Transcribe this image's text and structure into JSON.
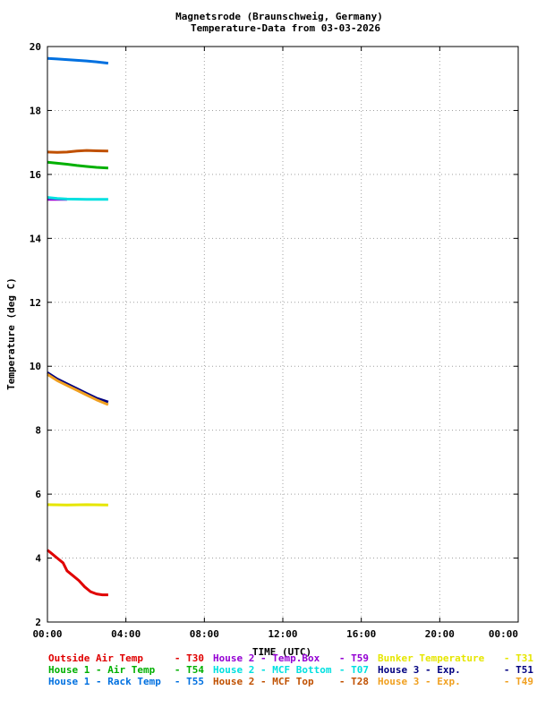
{
  "chart_data": {
    "type": "line",
    "title_line1": "Magnetsrode (Braunschweig, Germany)",
    "title_line2": "Temperature-Data from 03-03-2026",
    "xlabel": "TIME (UTC)",
    "ylabel": "Temperature (deg C)",
    "xlim": [
      0,
      24
    ],
    "ylim": [
      2,
      20
    ],
    "x_ticks": [
      "00:00",
      "04:00",
      "08:00",
      "12:00",
      "16:00",
      "20:00",
      "00:00"
    ],
    "y_ticks": [
      "2",
      "4",
      "6",
      "8",
      "10",
      "12",
      "14",
      "16",
      "18",
      "20"
    ],
    "grid": true,
    "legend_position": "bottom",
    "series": [
      {
        "name": "Outside Air Temp",
        "code": "- T30",
        "color": "#e00000",
        "x": [
          0,
          0.2,
          0.5,
          0.8,
          1.0,
          1.3,
          1.6,
          1.9,
          2.2,
          2.5,
          2.8,
          3.1
        ],
        "y": [
          4.25,
          4.15,
          4.0,
          3.85,
          3.6,
          3.45,
          3.3,
          3.1,
          2.95,
          2.88,
          2.85,
          2.85
        ]
      },
      {
        "name": "House 2 - Temp.Box",
        "code": "- T59",
        "color": "#9400d3",
        "x": [
          0,
          1.0
        ],
        "y": [
          15.22,
          15.22
        ]
      },
      {
        "name": "Bunker Temperature",
        "code": "- T31",
        "color": "#e6e600",
        "x": [
          0,
          1.0,
          2.0,
          3.1
        ],
        "y": [
          5.67,
          5.66,
          5.67,
          5.66
        ]
      },
      {
        "name": "House 1 - Air  Temp",
        "code": "- T54",
        "color": "#00b000",
        "x": [
          0,
          0.5,
          1.0,
          1.5,
          2.0,
          2.5,
          3.1
        ],
        "y": [
          16.38,
          16.35,
          16.32,
          16.28,
          16.25,
          16.22,
          16.2
        ]
      },
      {
        "name": "House 2 - MCF Bottom",
        "code": "- T07",
        "color": "#00e0e0",
        "x": [
          0,
          0.5,
          1.0,
          2.0,
          3.1
        ],
        "y": [
          15.28,
          15.25,
          15.23,
          15.22,
          15.22
        ]
      },
      {
        "name": "House 3 - Exp.",
        "code": "- T51",
        "color": "#000080",
        "x": [
          0,
          0.5,
          1.0,
          1.5,
          2.0,
          2.5,
          3.1
        ],
        "y": [
          9.8,
          9.6,
          9.45,
          9.3,
          9.15,
          9.0,
          8.88
        ]
      },
      {
        "name": "House 1 - Rack Temp",
        "code": "- T55",
        "color": "#0070e0",
        "x": [
          0,
          0.5,
          1.0,
          1.5,
          2.0,
          2.5,
          3.1
        ],
        "y": [
          19.63,
          19.61,
          19.59,
          19.57,
          19.55,
          19.52,
          19.48
        ]
      },
      {
        "name": "House 2 - MCF Top",
        "code": "- T28",
        "color": "#c05000",
        "x": [
          0,
          0.5,
          1.0,
          1.5,
          2.0,
          2.5,
          3.1
        ],
        "y": [
          16.7,
          16.69,
          16.7,
          16.73,
          16.75,
          16.74,
          16.73
        ]
      },
      {
        "name": "House 3 - Exp.",
        "code": "- T49",
        "color": "#f0a020",
        "x": [
          0,
          0.5,
          1.0,
          1.5,
          2.0,
          2.5,
          3.1
        ],
        "y": [
          9.75,
          9.55,
          9.4,
          9.25,
          9.1,
          8.95,
          8.8
        ]
      }
    ]
  }
}
